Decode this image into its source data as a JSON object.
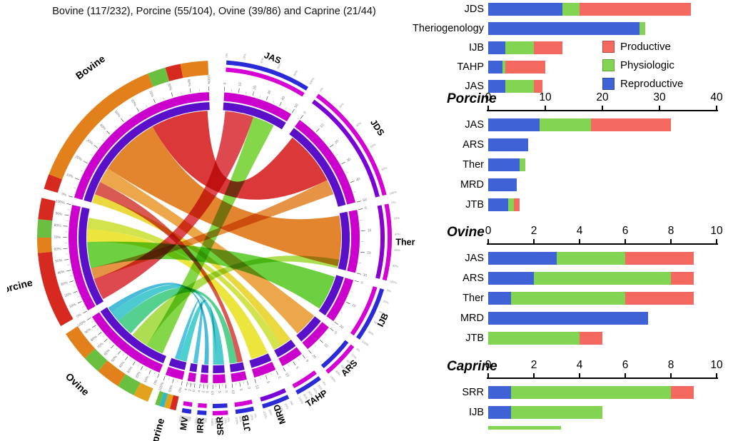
{
  "caption": "Bovine (117/232), Porcine (55/104), Ovine (39/86) and Caprine (21/44)",
  "legend": {
    "items": [
      {
        "label": "Productive",
        "color": "#f4695f"
      },
      {
        "label": "Physiologic",
        "color": "#82d452"
      },
      {
        "label": "Reproductive",
        "color": "#3f63d7"
      }
    ]
  },
  "chart_data": [
    {
      "type": "bar",
      "title": "",
      "orientation": "horizontal",
      "stacked": true,
      "xlim": [
        0,
        40
      ],
      "xticks": [],
      "categories": [
        "JDS",
        "Theriogenology",
        "IJB",
        "TAHP",
        "JAS"
      ],
      "series": [
        {
          "name": "Reproductive",
          "values": [
            13,
            26.5,
            3,
            2.5,
            3
          ]
        },
        {
          "name": "Physiologic",
          "values": [
            3,
            1,
            5,
            0.5,
            5
          ]
        },
        {
          "name": "Productive",
          "values": [
            19.5,
            0,
            5,
            7,
            1.5
          ]
        }
      ]
    },
    {
      "type": "bar",
      "title": "Porcine",
      "orientation": "horizontal",
      "stacked": true,
      "xlim": [
        0,
        40
      ],
      "xticks": [
        0,
        10,
        20,
        30,
        40
      ],
      "categories": [
        "JAS",
        "ARS",
        "Ther",
        "MRD",
        "JTB"
      ],
      "series": [
        {
          "name": "Reproductive",
          "values": [
            9,
            7,
            5.5,
            5,
            3.5
          ]
        },
        {
          "name": "Physiologic",
          "values": [
            9,
            0,
            1,
            0,
            1
          ]
        },
        {
          "name": "Productive",
          "values": [
            14,
            0,
            0,
            0,
            1
          ]
        }
      ]
    },
    {
      "type": "bar",
      "title": "Ovine",
      "orientation": "horizontal",
      "stacked": true,
      "xlim": [
        0,
        10
      ],
      "xticks": [
        0,
        2,
        4,
        6,
        8,
        10
      ],
      "categories": [
        "JAS",
        "ARS",
        "Ther",
        "MRD",
        "JTB"
      ],
      "series": [
        {
          "name": "Reproductive",
          "values": [
            3,
            2,
            1,
            7,
            0
          ]
        },
        {
          "name": "Physiologic",
          "values": [
            3,
            6,
            5,
            0,
            4
          ]
        },
        {
          "name": "Productive",
          "values": [
            3,
            1,
            3,
            0,
            1
          ]
        }
      ]
    },
    {
      "type": "bar",
      "title": "Caprine",
      "orientation": "horizontal",
      "stacked": true,
      "xlim": [
        0,
        10
      ],
      "xticks": [
        0,
        2,
        4,
        6,
        8,
        10
      ],
      "categories": [
        "SRR",
        "IJB"
      ],
      "series": [
        {
          "name": "Reproductive",
          "values": [
            1,
            1
          ]
        },
        {
          "name": "Physiologic",
          "values": [
            7,
            4
          ]
        },
        {
          "name": "Productive",
          "values": [
            1,
            0
          ]
        }
      ],
      "partial_bar": {
        "color": "#82d452",
        "value": 3.2
      }
    }
  ],
  "chord": {
    "type": "chord",
    "rings": {
      "outer": "#cc00cc",
      "inner": "#5a10c8"
    },
    "sectors": [
      {
        "label": "JAS",
        "kind": "journal",
        "start": 4,
        "end": 32,
        "rot": 22,
        "outerArcs": [
          "#2a2ad8",
          "#d400d4"
        ],
        "scaleMax": 50,
        "scaleStep": 10
      },
      {
        "label": "JDS",
        "kind": "journal",
        "start": 36,
        "end": 76,
        "rot": 56,
        "labelRadius": 275,
        "outerArcs": [
          "#d400d4",
          "#7a00d8"
        ],
        "scaleMax": 50,
        "scaleStep": 10
      },
      {
        "label": "Ther",
        "kind": "journal",
        "start": 79,
        "end": 104,
        "rot": 0,
        "labelRadius": 268,
        "outerArcs": [
          "#d400d4",
          "#8800cc"
        ],
        "scaleMax": 30,
        "scaleStep": 10
      },
      {
        "label": "IJB",
        "kind": "journal",
        "start": 107,
        "end": 125,
        "rot": -64,
        "outerArcs": [
          "#2a2ad8",
          "#d400d4"
        ],
        "scaleMax": 20,
        "scaleStep": 10
      },
      {
        "label": "ARS",
        "kind": "journal",
        "start": 128,
        "end": 140,
        "rot": -46,
        "outerArcs": [
          "#d400d4",
          "#2a2ad8"
        ],
        "scaleMax": 20,
        "scaleStep": 10
      },
      {
        "label": "TAHP",
        "kind": "journal",
        "start": 143,
        "end": 152,
        "rot": -33,
        "labelRadius": 268,
        "outerArcs": [
          "#2a2ad8",
          "#d400d4"
        ],
        "scaleMax": 10,
        "scaleStep": 5
      },
      {
        "label": "MRD",
        "kind": "journal",
        "start": 155,
        "end": 164,
        "rot": -110,
        "outerArcs": [
          "#2a2ad8",
          "#7a00d8"
        ],
        "scaleMax": 10,
        "scaleStep": 5
      },
      {
        "label": "JTB",
        "kind": "journal",
        "start": 167,
        "end": 173,
        "rot": -100,
        "outerArcs": [
          "#2a2ad8",
          "#d400d4"
        ],
        "scaleMax": 10,
        "scaleStep": 5
      },
      {
        "label": "SRR",
        "kind": "journal",
        "start": 175.5,
        "end": 180.5,
        "rot": -94,
        "outerArcs": [
          "#d400d4",
          "#2a2ad8"
        ],
        "scaleMax": 10,
        "scaleStep": 5
      },
      {
        "label": "IRR",
        "kind": "journal",
        "start": 182.5,
        "end": 185.5,
        "rot": -87,
        "outerArcs": [
          "#2a2ad8",
          "#d400d4"
        ],
        "scaleMax": 4,
        "scaleStep": 2
      },
      {
        "label": "MV",
        "kind": "journal",
        "start": 187.5,
        "end": 190.5,
        "rot": -82,
        "outerArcs": [
          "#2a2ad8",
          "#d400d4"
        ],
        "scaleMax": 4,
        "scaleStep": 2
      },
      {
        "label": "Caprine",
        "kind": "species",
        "start": 192.5,
        "end": 199.5,
        "rot": -75,
        "labelRadius": 290,
        "scaleMax": 100,
        "scaleStep": 50,
        "segments": [
          [
            192.5,
            194.5,
            "#d62a20"
          ],
          [
            194.5,
            196.5,
            "#e2a21b"
          ],
          [
            196.5,
            198,
            "#30b8c8"
          ],
          [
            198,
            199.5,
            "#6abf40"
          ]
        ]
      },
      {
        "label": "Ovine",
        "kind": "species",
        "start": 202,
        "end": 237,
        "rot": 43,
        "labelAngle": 223,
        "labelRadius": 282,
        "scaleMax": 100,
        "scaleStep": 10,
        "segments": [
          [
            202,
            207,
            "#e2a21b"
          ],
          [
            207,
            213,
            "#6abf40"
          ],
          [
            213,
            221,
            "#e2811b"
          ],
          [
            221,
            227,
            "#6abf40"
          ],
          [
            227,
            237,
            "#e2811b"
          ]
        ]
      },
      {
        "label": "Porcine",
        "kind": "species",
        "start": 240,
        "end": 283,
        "rot": -14,
        "labelAngle": 256,
        "labelRadius": 288,
        "scaleMax": 100,
        "scaleStep": 10,
        "segments": [
          [
            240,
            265,
            "#d62a20"
          ],
          [
            265,
            270,
            "#e2811b"
          ],
          [
            270,
            276,
            "#6abf40"
          ],
          [
            276,
            283,
            "#d62a20"
          ]
        ]
      },
      {
        "label": "Bovine",
        "kind": "species",
        "start": 286,
        "end": 358,
        "rot": -36,
        "labelAngle": 324,
        "labelRadius": 294,
        "scaleMax": 100,
        "scaleStep": 10,
        "segments": [
          [
            286,
            291,
            "#d62a20"
          ],
          [
            291,
            338,
            "#e2811b"
          ],
          [
            338,
            344,
            "#6abf40"
          ],
          [
            344,
            349,
            "#d62a20"
          ],
          [
            349,
            358,
            "#e2811b"
          ]
        ]
      }
    ],
    "ribbons": [
      {
        "a": [
          331,
          357
        ],
        "b": [
          38,
          63
        ],
        "color": "#d82828",
        "opacity": 0.92
      },
      {
        "a": [
          303,
          331
        ],
        "b": [
          80,
          103
        ],
        "color": "#e07818",
        "opacity": 0.9
      },
      {
        "a": [
          296,
          303
        ],
        "b": [
          128,
          139
        ],
        "color": "#e8982a",
        "opacity": 0.85
      },
      {
        "a": [
          286,
          290
        ],
        "b": [
          143,
          148
        ],
        "color": "#e8d01c",
        "opacity": 0.85
      },
      {
        "a": [
          290,
          296
        ],
        "b": [
          167,
          169.5
        ],
        "color": "#d03028",
        "opacity": 0.8
      },
      {
        "a": [
          241,
          251
        ],
        "b": [
          5,
          18
        ],
        "color": "#d82830",
        "opacity": 0.85
      },
      {
        "a": [
          251,
          256
        ],
        "b": [
          63,
          70
        ],
        "color": "#e07818",
        "opacity": 0.8
      },
      {
        "a": [
          256,
          268
        ],
        "b": [
          108,
          124
        ],
        "color": "#52c81e",
        "opacity": 0.85
      },
      {
        "a": [
          268,
          274
        ],
        "b": [
          155,
          163
        ],
        "color": "#e8e01c",
        "opacity": 0.85
      },
      {
        "a": [
          274,
          279
        ],
        "b": [
          148,
          152
        ],
        "color": "#c8dc20",
        "opacity": 0.8
      },
      {
        "a": [
          204,
          212
        ],
        "b": [
          18,
          28
        ],
        "color": "#6ed028",
        "opacity": 0.85
      },
      {
        "a": [
          212,
          220
        ],
        "b": [
          100,
          104
        ],
        "color": "#98d426",
        "opacity": 0.8
      },
      {
        "a": [
          221,
          229
        ],
        "b": [
          169.5,
          173
        ],
        "color": "#38c87a",
        "opacity": 0.85
      },
      {
        "a": [
          229,
          234
        ],
        "b": [
          175.5,
          179
        ],
        "color": "#2ec0c8",
        "opacity": 0.85
      },
      {
        "a": [
          234,
          236.5
        ],
        "b": [
          182.5,
          184.5
        ],
        "color": "#2ab0d4",
        "opacity": 0.85
      },
      {
        "a": [
          192.5,
          196
        ],
        "b": [
          179,
          180.5
        ],
        "color": "#30c8c8",
        "opacity": 0.85
      },
      {
        "a": [
          196,
          198
        ],
        "b": [
          187.5,
          189.5
        ],
        "color": "#28b4d8",
        "opacity": 0.8
      }
    ]
  }
}
